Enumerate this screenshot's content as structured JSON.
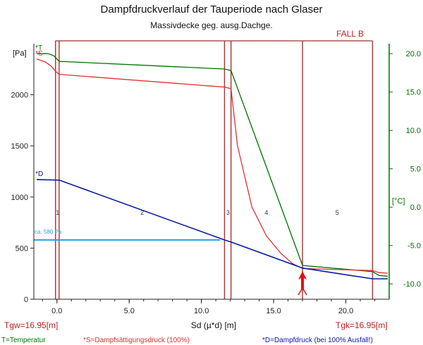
{
  "chart_data": {
    "type": "line",
    "title": "Dampfdruckverlauf der Tauperiode nach Glaser",
    "subtitle": "Massivdecke geg. ausg.Dachge.",
    "case_label": "FALL B",
    "xlabel": "Sd (µ*d) [m]",
    "ylabel_left": "[Pa]",
    "ylabel_right": "[°C]",
    "xlim": [
      -1.6,
      23.0
    ],
    "ylim_left": [
      0,
      2500
    ],
    "ylim_right": [
      -12,
      21.3
    ],
    "x_ticks": [
      {
        "v": 0,
        "label": "0.0"
      },
      {
        "v": 5,
        "label": "5.0"
      },
      {
        "v": 10,
        "label": "10.0"
      },
      {
        "v": 15,
        "label": "15.0"
      },
      {
        "v": 20,
        "label": "20.0"
      }
    ],
    "y_left_ticks": [
      {
        "v": 0,
        "label": "0"
      },
      {
        "v": 500,
        "label": "500"
      },
      {
        "v": 1000,
        "label": "1000"
      },
      {
        "v": 1500,
        "label": "1500"
      },
      {
        "v": 2000,
        "label": "2000"
      }
    ],
    "y_right_ticks": [
      {
        "v": 20,
        "label": "20.0"
      },
      {
        "v": 15,
        "label": "15.0"
      },
      {
        "v": 10,
        "label": "10.0"
      },
      {
        "v": 5,
        "label": "5.0"
      },
      {
        "v": 0,
        "label": "0.0"
      },
      {
        "v": -5,
        "label": "-5.0"
      },
      {
        "v": -10,
        "label": "-10.0"
      }
    ],
    "layer_boundaries": [
      -0.1,
      0.15,
      11.6,
      12.05,
      17.0,
      21.85
    ],
    "layers": [
      {
        "x": 0.05,
        "label": "1"
      },
      {
        "x": 5.9,
        "label": "2"
      },
      {
        "x": 11.85,
        "label": "3"
      },
      {
        "x": 14.5,
        "label": "4"
      },
      {
        "x": 19.4,
        "label": "5"
      }
    ],
    "series": [
      {
        "name": "*T",
        "axis": "right",
        "color": "#007000",
        "x": [
          -1.4,
          -0.6,
          -0.2,
          0.1,
          0.15,
          11.6,
          12.05,
          17.0,
          21.85,
          22.3,
          22.9
        ],
        "y": [
          20.0,
          20.0,
          19.7,
          19.1,
          19.0,
          18.0,
          17.8,
          -7.6,
          -8.4,
          -8.9,
          -9.0
        ]
      },
      {
        "name": "*S",
        "axis": "left",
        "color": "#e03030",
        "x": [
          -1.4,
          -0.8,
          -0.4,
          -0.1,
          0.1,
          0.15,
          11.6,
          12.05,
          12.5,
          13.5,
          14.5,
          15.5,
          16.3,
          17.0,
          21.85,
          22.3,
          22.9
        ],
        "y": [
          2350,
          2320,
          2280,
          2230,
          2205,
          2200,
          2075,
          2060,
          1500,
          900,
          620,
          450,
          350,
          300,
          280,
          260,
          255
        ]
      },
      {
        "name": "*D",
        "axis": "left",
        "color": "#0a1aa0",
        "x": [
          -1.4,
          0.15,
          11.6,
          12.05,
          17.0,
          21.85,
          22.9
        ],
        "y": [
          1170,
          1165,
          580,
          560,
          305,
          200,
          200
        ]
      }
    ],
    "hline": {
      "y": 580,
      "x_start": -1.6,
      "x_end": 11.3,
      "label": "ca. 580 Pa",
      "color": "#1aa0e0"
    },
    "marker_x": 17.0,
    "bottom_left_label": "Tgw=16.95[m]",
    "bottom_right_label": "Tgk=16.95[m]",
    "legend": [
      {
        "label": "T=Temperatur",
        "color": "#007000"
      },
      {
        "label": "*S=Dampfsättigungsdruck (100%)",
        "color": "#e03030"
      },
      {
        "label": "*D=Dampfdruck (bei 100% Ausfall!)",
        "color": "#0a1aa0"
      }
    ]
  }
}
